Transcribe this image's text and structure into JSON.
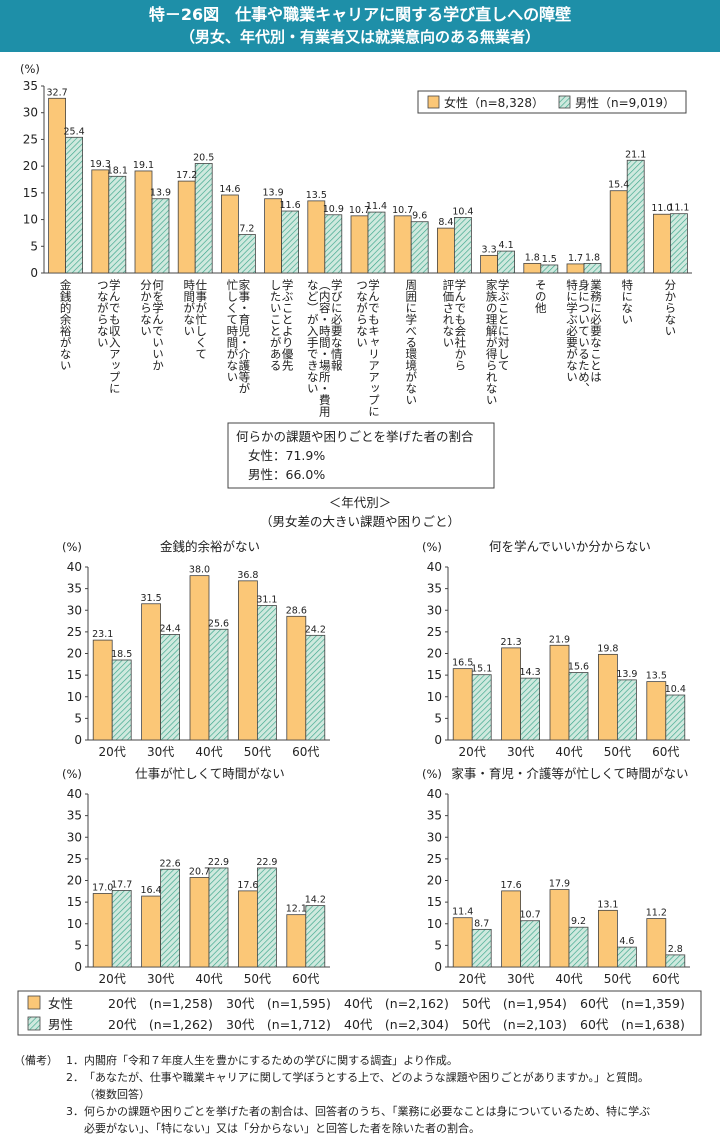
{
  "header": {
    "title": "特－26図　仕事や職業キャリアに関する学び直しへの障壁",
    "subtitle": "（男女、年代別・有業者又は就業意向のある無業者）"
  },
  "colors": {
    "female": "#fbc777",
    "male_fill": "#cfe9de",
    "male_hatch": "#3aa58a",
    "border": "#444444"
  },
  "summary": {
    "title": "何らかの課題や困りごとを挙げた者の割合",
    "female": "女性：71.9%",
    "male": "男性：66.0%"
  },
  "age_section": {
    "title": "＜年代別＞",
    "subtitle": "（男女差の大きい課題や困りごと）"
  },
  "bottom_legend": {
    "female": {
      "label": "女性",
      "items": [
        "20代　(n=1,258)",
        "30代　(n=1,595)",
        "40代　(n=2,162)",
        "50代　(n=1,954)",
        "60代　(n=1,359)"
      ]
    },
    "male": {
      "label": "男性",
      "items": [
        "20代　(n=1,262)",
        "30代　(n=1,712)",
        "40代　(n=2,304)",
        "50代　(n=2,103)",
        "60代　(n=1,638)"
      ]
    }
  },
  "notes": {
    "heading": "（備考）",
    "items": [
      {
        "num": "1．",
        "lines": [
          "内閣府「令和７年度人生を豊かにするための学びに関する調査」より作成。"
        ]
      },
      {
        "num": "2．",
        "lines": [
          "「あなたが、仕事や職業キャリアに関して学ぼうとする上で、どのような課題や困りごとがありますか。」と質問。",
          "（複数回答）"
        ]
      },
      {
        "num": "3．",
        "lines": [
          "何らかの課題や困りごとを挙げた者の割合は、回答者のうち、「業務に必要なことは身についているため、特に学ぶ",
          "必要がない」、「特にない」又は「分からない」と回答した者を除いた者の割合。"
        ]
      }
    ]
  },
  "chart_data": [
    {
      "type": "bar",
      "ylabel": "(%)",
      "ylim": [
        0,
        35
      ],
      "yticks": [
        0,
        5,
        10,
        15,
        20,
        25,
        30,
        35
      ],
      "legend_position": "top-right",
      "legend": [
        "女性（n=8,328）",
        "男性（n=9,019）"
      ],
      "categories": [
        "金銭的余裕がない",
        "学んでも収入アップに\nつながらない",
        "何を学んでいいか\n分からない",
        "仕事が忙しくて\n時間がない",
        "家事・育児・介護等が\n忙しくて時間がない",
        "学ぶことより優先\nしたいことがある",
        "学びに必要な情報\n（内容・時間・場所・費用\nなど）が入手できない",
        "学んでもキャリアアップに\nつながらない",
        "周囲に学べる環境がない",
        "学んでも会社から\n評価されない",
        "学ぶことに対して\n家族の理解が得られない",
        "その他",
        "業務に必要なことは\n身についているため、\n特に学ぶ必要がない",
        "特にない",
        "分からない"
      ],
      "series": [
        {
          "name": "女性",
          "values": [
            32.7,
            19.3,
            19.1,
            17.2,
            14.6,
            13.9,
            13.5,
            10.7,
            10.7,
            8.4,
            3.3,
            1.8,
            1.7,
            15.4,
            11.0
          ],
          "labels": [
            "32.7",
            "19.3",
            "19.1",
            "17.2",
            "14.6",
            "13.9",
            "13.5",
            "10.7",
            "10.7",
            "8.4",
            "3.3",
            "1.8",
            "1.7",
            "15.4",
            "11.0"
          ]
        },
        {
          "name": "男性",
          "values": [
            25.4,
            18.1,
            13.9,
            20.5,
            7.2,
            11.6,
            10.9,
            11.4,
            9.6,
            10.4,
            4.1,
            1.5,
            1.8,
            21.1,
            11.1
          ],
          "labels": [
            "25.4",
            "18.1",
            "13.9",
            "20.5",
            "7.2",
            "11.6",
            "10.9",
            "11.4",
            "9.6",
            "10.4",
            "4.1",
            "1.5",
            "1.8",
            "21.1",
            "11.1"
          ]
        }
      ]
    },
    {
      "type": "bar",
      "title": "金銭的余裕がない",
      "ylabel": "(%)",
      "ylim": [
        0,
        40
      ],
      "yticks": [
        0,
        5,
        10,
        15,
        20,
        25,
        30,
        35,
        40
      ],
      "categories": [
        "20代",
        "30代",
        "40代",
        "50代",
        "60代"
      ],
      "series": [
        {
          "name": "女性",
          "values": [
            23.1,
            31.5,
            38.0,
            36.8,
            28.6
          ],
          "labels": [
            "23.1",
            "31.5",
            "38.0",
            "36.8",
            "28.6"
          ]
        },
        {
          "name": "男性",
          "values": [
            18.5,
            24.4,
            25.6,
            31.1,
            24.2
          ],
          "labels": [
            "18.5",
            "24.4",
            "25.6",
            "31.1",
            "24.2"
          ]
        }
      ]
    },
    {
      "type": "bar",
      "title": "何を学んでいいか分からない",
      "ylabel": "(%)",
      "ylim": [
        0,
        40
      ],
      "yticks": [
        0,
        5,
        10,
        15,
        20,
        25,
        30,
        35,
        40
      ],
      "categories": [
        "20代",
        "30代",
        "40代",
        "50代",
        "60代"
      ],
      "series": [
        {
          "name": "女性",
          "values": [
            16.5,
            21.3,
            21.9,
            19.8,
            13.5
          ],
          "labels": [
            "16.5",
            "21.3",
            "21.9",
            "19.8",
            "13.5"
          ]
        },
        {
          "name": "男性",
          "values": [
            15.1,
            14.3,
            15.6,
            13.9,
            10.4
          ],
          "labels": [
            "15.1",
            "14.3",
            "15.6",
            "13.9",
            "10.4"
          ]
        }
      ]
    },
    {
      "type": "bar",
      "title": "仕事が忙しくて時間がない",
      "ylabel": "(%)",
      "ylim": [
        0,
        40
      ],
      "yticks": [
        0,
        5,
        10,
        15,
        20,
        25,
        30,
        35,
        40
      ],
      "categories": [
        "20代",
        "30代",
        "40代",
        "50代",
        "60代"
      ],
      "series": [
        {
          "name": "女性",
          "values": [
            17.0,
            16.4,
            20.7,
            17.6,
            12.1
          ],
          "labels": [
            "17.0",
            "16.4",
            "20.7",
            "17.6",
            "12.1"
          ]
        },
        {
          "name": "男性",
          "values": [
            17.7,
            22.6,
            22.9,
            22.9,
            14.2
          ],
          "labels": [
            "17.7",
            "22.6",
            "22.9",
            "22.9",
            "14.2"
          ]
        }
      ]
    },
    {
      "type": "bar",
      "title": "家事・育児・介護等が忙しくて時間がない",
      "ylabel": "(%)",
      "ylim": [
        0,
        40
      ],
      "yticks": [
        0,
        5,
        10,
        15,
        20,
        25,
        30,
        35,
        40
      ],
      "categories": [
        "20代",
        "30代",
        "40代",
        "50代",
        "60代"
      ],
      "series": [
        {
          "name": "女性",
          "values": [
            11.4,
            17.6,
            17.9,
            13.1,
            11.2
          ],
          "labels": [
            "11.4",
            "17.6",
            "17.9",
            "13.1",
            "11.2"
          ]
        },
        {
          "name": "男性",
          "values": [
            8.7,
            10.7,
            9.2,
            4.6,
            2.8
          ],
          "labels": [
            "8.7",
            "10.7",
            "9.2",
            "4.6",
            "2.8"
          ]
        }
      ]
    }
  ]
}
